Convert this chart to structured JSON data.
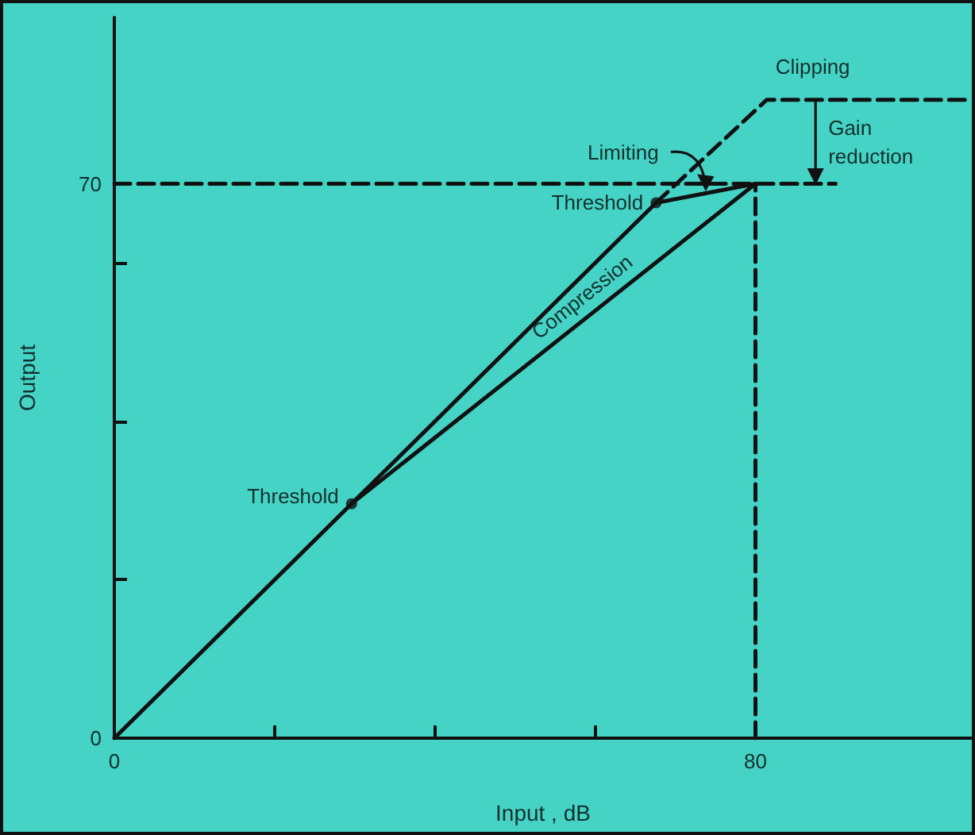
{
  "chart_data": {
    "type": "line",
    "xlabel": "Input , dB",
    "ylabel": "Output",
    "xlim": [
      0,
      107
    ],
    "ylim": [
      0,
      91
    ],
    "xticks": [
      0,
      {
        "value": 20,
        "label": null
      },
      {
        "value": 40,
        "label": null
      },
      {
        "value": 60,
        "label": null
      },
      80
    ],
    "yticks": [
      0,
      {
        "value": 20,
        "label": null
      },
      {
        "value": 40,
        "label": null
      },
      {
        "value": 60,
        "label": null
      },
      70
    ],
    "grid": false,
    "legend": false,
    "series": [
      {
        "color": "#111111",
        "x": [
          0,
          67.6
        ],
        "values": [
          0,
          67.6
        ]
      },
      {
        "color": "#111111",
        "x": [
          67.6,
          80
        ],
        "values": [
          67.6,
          70
        ]
      },
      {
        "name": "Compression",
        "color": "#111111",
        "x": [
          29.6,
          80
        ],
        "values": [
          29.6,
          70
        ]
      },
      {
        "color": "#111111",
        "x": [
          67.6,
          81.4,
          107
        ],
        "values": [
          67.6,
          80.6,
          80.6
        ],
        "line_style": "dashed"
      },
      {
        "color": "#111111",
        "x": [
          0,
          90
        ],
        "values": [
          70,
          70
        ],
        "line_style": "dashed"
      },
      {
        "color": "#111111",
        "x": [
          80,
          80
        ],
        "values": [
          0,
          70
        ],
        "line_style": "dashed"
      },
      {
        "type": "scatter",
        "color": "#111111",
        "x": [
          29.6,
          67.6
        ],
        "values": [
          29.6,
          67.6
        ],
        "marker": "circle"
      }
    ],
    "annotations": [
      {
        "text": "Clipping",
        "x": 81.4,
        "y": 80.6
      },
      {
        "text": "Limiting",
        "x": 73.8,
        "y": 68.8
      },
      {
        "text": "Threshold",
        "x": 67.6,
        "y": 67.6
      },
      {
        "text": "Gain reduction",
        "x": 87.5,
        "y": 70
      },
      {
        "text": "Threshold",
        "x": 29.6,
        "y": 29.6
      }
    ]
  }
}
